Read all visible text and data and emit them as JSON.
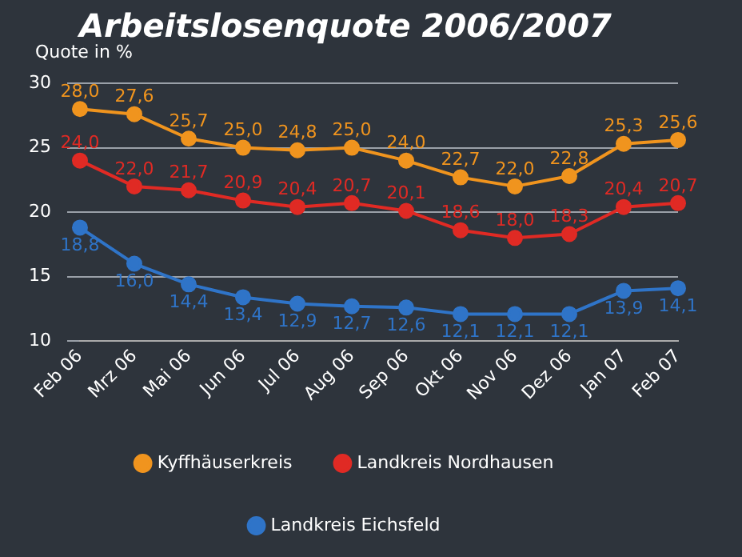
{
  "chart_data": {
    "type": "line",
    "title": "Arbeitslosenquote 2006/2007",
    "ylabel": "Quote in %",
    "categories": [
      "Feb 06",
      "Mrz 06",
      "Mai 06",
      "Jun 06",
      "Jul 06",
      "Aug 06",
      "Sep 06",
      "Okt 06",
      "Nov 06",
      "Dez 06",
      "Jan 07",
      "Feb 07"
    ],
    "series": [
      {
        "name": "Kyffhäuserkreis",
        "color": "#f0941e",
        "values": [
          28.0,
          27.6,
          25.7,
          25.0,
          24.8,
          25.0,
          24.0,
          22.7,
          22.0,
          22.8,
          25.3,
          25.6
        ],
        "value_labels": [
          "28,0",
          "27,6",
          "25,7",
          "25,0",
          "24,8",
          "25,0",
          "24,0",
          "22,7",
          "22,0",
          "22,8",
          "25,3",
          "25,6"
        ]
      },
      {
        "name": "Landkreis Nordhausen",
        "color": "#e02a24",
        "values": [
          24.0,
          22.0,
          21.7,
          20.9,
          20.4,
          20.7,
          20.1,
          18.6,
          18.0,
          18.3,
          20.4,
          20.7
        ],
        "value_labels": [
          "24,0",
          "22,0",
          "21,7",
          "20,9",
          "20,4",
          "20,7",
          "20,1",
          "18,6",
          "18,0",
          "18,3",
          "20,4",
          "20,7"
        ]
      },
      {
        "name": "Landkreis Eichsfeld",
        "color": "#2f74c8",
        "values": [
          18.8,
          16.0,
          14.4,
          13.4,
          12.9,
          12.7,
          12.6,
          12.1,
          12.1,
          12.1,
          13.9,
          14.1
        ],
        "value_labels": [
          "18,8",
          "16,0",
          "14,4",
          "13,4",
          "12,9",
          "12,7",
          "12,6",
          "12,1",
          "12,1",
          "12,1",
          "13,9",
          "14,1"
        ]
      }
    ],
    "ylim": [
      10,
      30
    ],
    "yticks": [
      10,
      15,
      20,
      25,
      30
    ],
    "grid": "y",
    "legend": "bottom",
    "marker": "circle",
    "line_style": "solid"
  }
}
